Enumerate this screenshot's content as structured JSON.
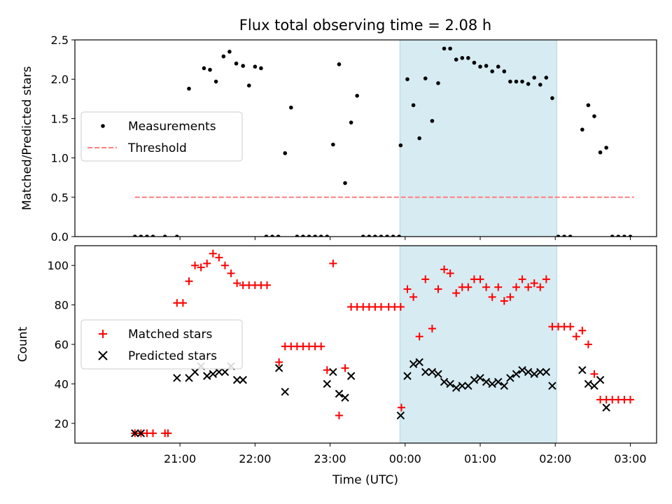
{
  "figure": {
    "title": "Flux total observing time = 2.08 h",
    "xlabel": "Time (UTC)",
    "x_ticks": [
      "21:00",
      "22:00",
      "23:00",
      "00:00",
      "01:00",
      "02:00",
      "03:00"
    ]
  },
  "chart_data": [
    {
      "type": "scatter",
      "title": "Flux total observing time = 2.08 h",
      "xlabel": "",
      "ylabel": "Matched/Predicted stars",
      "x_unit": "hours since 00:00 UTC",
      "xlim": [
        -4.4,
        3.35
      ],
      "ylim": [
        0,
        2.5
      ],
      "y_ticks": [
        "0.0",
        "0.5",
        "1.0",
        "1.5",
        "2.0",
        "2.5"
      ],
      "highlight_span": {
        "from": -0.07,
        "to": 2.02,
        "color": "#add8e6"
      },
      "legend": {
        "position": "center-left",
        "entries": [
          "Measurements",
          "Threshold"
        ]
      },
      "threshold": {
        "name": "Threshold",
        "value": 0.5,
        "x_range": [
          -3.6,
          3.05
        ],
        "color": "#ff7f7f"
      },
      "series": [
        {
          "name": "Measurements",
          "marker": "dot",
          "color": "#000000",
          "points": [
            [
              -3.6,
              0
            ],
            [
              -3.52,
              0
            ],
            [
              -3.44,
              0
            ],
            [
              -3.36,
              0
            ],
            [
              -3.2,
              0
            ],
            [
              -3.04,
              0
            ],
            [
              -2.88,
              1.88
            ],
            [
              -2.68,
              2.14
            ],
            [
              -2.6,
              2.12
            ],
            [
              -2.52,
              1.97
            ],
            [
              -2.42,
              2.29
            ],
            [
              -2.34,
              2.35
            ],
            [
              -2.25,
              2.2
            ],
            [
              -2.16,
              2.17
            ],
            [
              -2.08,
              1.92
            ],
            [
              -2.0,
              2.16
            ],
            [
              -1.92,
              2.14
            ],
            [
              -1.85,
              0
            ],
            [
              -1.77,
              0
            ],
            [
              -1.69,
              0
            ],
            [
              -1.6,
              1.06
            ],
            [
              -1.52,
              1.64
            ],
            [
              -1.44,
              0
            ],
            [
              -1.36,
              0
            ],
            [
              -1.28,
              0
            ],
            [
              -1.2,
              0
            ],
            [
              -1.12,
              0
            ],
            [
              -1.04,
              0
            ],
            [
              -0.96,
              1.17
            ],
            [
              -0.88,
              2.19
            ],
            [
              -0.8,
              0.68
            ],
            [
              -0.72,
              1.45
            ],
            [
              -0.64,
              1.79
            ],
            [
              -0.56,
              0
            ],
            [
              -0.48,
              0
            ],
            [
              -0.4,
              0
            ],
            [
              -0.32,
              0
            ],
            [
              -0.24,
              0
            ],
            [
              -0.16,
              0
            ],
            [
              -0.08,
              0
            ],
            [
              -0.06,
              1.16
            ],
            [
              0.03,
              2.0
            ],
            [
              0.11,
              1.67
            ],
            [
              0.19,
              1.25
            ],
            [
              0.27,
              2.01
            ],
            [
              0.36,
              1.47
            ],
            [
              0.44,
              1.95
            ],
            [
              0.52,
              2.39
            ],
            [
              0.6,
              2.39
            ],
            [
              0.68,
              2.25
            ],
            [
              0.76,
              2.27
            ],
            [
              0.84,
              2.27
            ],
            [
              0.92,
              2.21
            ],
            [
              1.0,
              2.16
            ],
            [
              1.08,
              2.17
            ],
            [
              1.16,
              2.1
            ],
            [
              1.24,
              2.16
            ],
            [
              1.32,
              2.1
            ],
            [
              1.4,
              1.97
            ],
            [
              1.48,
              1.97
            ],
            [
              1.56,
              1.97
            ],
            [
              1.64,
              1.94
            ],
            [
              1.72,
              2.02
            ],
            [
              1.8,
              1.93
            ],
            [
              1.88,
              2.02
            ],
            [
              1.96,
              1.76
            ],
            [
              2.04,
              0
            ],
            [
              2.12,
              0
            ],
            [
              2.2,
              0
            ],
            [
              2.36,
              1.36
            ],
            [
              2.44,
              1.67
            ],
            [
              2.52,
              1.53
            ],
            [
              2.6,
              1.07
            ],
            [
              2.68,
              1.13
            ],
            [
              2.76,
              0
            ],
            [
              2.84,
              0
            ],
            [
              2.92,
              0
            ],
            [
              3.0,
              0
            ]
          ]
        }
      ]
    },
    {
      "type": "scatter",
      "title": "",
      "xlabel": "Time (UTC)",
      "ylabel": "Count",
      "x_unit": "hours since 00:00 UTC",
      "xlim": [
        -4.4,
        3.35
      ],
      "ylim": [
        10,
        110
      ],
      "y_ticks": [
        "20",
        "40",
        "60",
        "80",
        "100"
      ],
      "highlight_span": {
        "from": -0.07,
        "to": 2.02,
        "color": "#add8e6"
      },
      "legend": {
        "position": "center-left",
        "entries": [
          "Matched stars",
          "Predicted stars"
        ]
      },
      "series": [
        {
          "name": "Matched stars",
          "marker": "plus",
          "color": "#ff0000",
          "points": [
            [
              -3.6,
              15
            ],
            [
              -3.52,
              15
            ],
            [
              -3.44,
              15
            ],
            [
              -3.36,
              15
            ],
            [
              -3.2,
              15
            ],
            [
              -3.16,
              15
            ],
            [
              -3.04,
              81
            ],
            [
              -2.96,
              81
            ],
            [
              -2.88,
              92
            ],
            [
              -2.8,
              100
            ],
            [
              -2.72,
              99
            ],
            [
              -2.64,
              101
            ],
            [
              -2.56,
              106
            ],
            [
              -2.48,
              104
            ],
            [
              -2.4,
              100
            ],
            [
              -2.32,
              96
            ],
            [
              -2.24,
              91
            ],
            [
              -2.16,
              90
            ],
            [
              -2.08,
              90
            ],
            [
              -2.0,
              90
            ],
            [
              -1.92,
              90
            ],
            [
              -1.84,
              90
            ],
            [
              -1.68,
              51
            ],
            [
              -1.6,
              59
            ],
            [
              -1.52,
              59
            ],
            [
              -1.44,
              59
            ],
            [
              -1.36,
              59
            ],
            [
              -1.28,
              59
            ],
            [
              -1.2,
              59
            ],
            [
              -1.12,
              59
            ],
            [
              -1.04,
              47
            ],
            [
              -0.96,
              101
            ],
            [
              -0.88,
              24
            ],
            [
              -0.8,
              48
            ],
            [
              -0.72,
              79
            ],
            [
              -0.64,
              79
            ],
            [
              -0.56,
              79
            ],
            [
              -0.48,
              79
            ],
            [
              -0.4,
              79
            ],
            [
              -0.32,
              79
            ],
            [
              -0.22,
              79
            ],
            [
              -0.14,
              79
            ],
            [
              -0.06,
              79
            ],
            [
              -0.05,
              28
            ],
            [
              0.03,
              88
            ],
            [
              0.11,
              84
            ],
            [
              0.19,
              64
            ],
            [
              0.27,
              93
            ],
            [
              0.36,
              68
            ],
            [
              0.44,
              88
            ],
            [
              0.52,
              98
            ],
            [
              0.6,
              96
            ],
            [
              0.68,
              86
            ],
            [
              0.76,
              89
            ],
            [
              0.84,
              89
            ],
            [
              0.92,
              93
            ],
            [
              1.0,
              93
            ],
            [
              1.08,
              89
            ],
            [
              1.16,
              84
            ],
            [
              1.24,
              89
            ],
            [
              1.32,
              82
            ],
            [
              1.4,
              84
            ],
            [
              1.48,
              89
            ],
            [
              1.56,
              93
            ],
            [
              1.64,
              89
            ],
            [
              1.72,
              91
            ],
            [
              1.8,
              89
            ],
            [
              1.88,
              93
            ],
            [
              1.96,
              69
            ],
            [
              2.04,
              69
            ],
            [
              2.12,
              69
            ],
            [
              2.2,
              69
            ],
            [
              2.28,
              64
            ],
            [
              2.36,
              67
            ],
            [
              2.44,
              60
            ],
            [
              2.52,
              45
            ],
            [
              2.6,
              32
            ],
            [
              2.68,
              32
            ],
            [
              2.76,
              32
            ],
            [
              2.84,
              32
            ],
            [
              2.92,
              32
            ],
            [
              3.0,
              32
            ]
          ]
        },
        {
          "name": "Predicted stars",
          "marker": "x",
          "color": "#000000",
          "points": [
            [
              -3.6,
              15
            ],
            [
              -3.52,
              15
            ],
            [
              -3.04,
              43
            ],
            [
              -2.88,
              43
            ],
            [
              -2.8,
              46
            ],
            [
              -2.72,
              49
            ],
            [
              -2.64,
              44
            ],
            [
              -2.56,
              45
            ],
            [
              -2.48,
              46
            ],
            [
              -2.4,
              46
            ],
            [
              -2.32,
              49
            ],
            [
              -2.24,
              42
            ],
            [
              -2.16,
              42
            ],
            [
              -1.68,
              48
            ],
            [
              -1.6,
              36
            ],
            [
              -1.04,
              40
            ],
            [
              -0.96,
              46
            ],
            [
              -0.88,
              35
            ],
            [
              -0.8,
              33
            ],
            [
              -0.72,
              44
            ],
            [
              -0.06,
              24
            ],
            [
              0.03,
              44
            ],
            [
              0.11,
              50
            ],
            [
              0.19,
              51
            ],
            [
              0.27,
              46
            ],
            [
              0.36,
              46
            ],
            [
              0.44,
              45
            ],
            [
              0.52,
              41
            ],
            [
              0.6,
              40
            ],
            [
              0.68,
              38
            ],
            [
              0.76,
              39
            ],
            [
              0.84,
              39
            ],
            [
              0.92,
              42
            ],
            [
              1.0,
              43
            ],
            [
              1.08,
              41
            ],
            [
              1.16,
              40
            ],
            [
              1.24,
              41
            ],
            [
              1.32,
              39
            ],
            [
              1.4,
              43
            ],
            [
              1.48,
              45
            ],
            [
              1.56,
              47
            ],
            [
              1.64,
              46
            ],
            [
              1.72,
              45
            ],
            [
              1.8,
              46
            ],
            [
              1.88,
              46
            ],
            [
              1.96,
              39
            ],
            [
              2.36,
              47
            ],
            [
              2.44,
              40
            ],
            [
              2.52,
              39
            ],
            [
              2.6,
              42
            ],
            [
              2.68,
              28
            ]
          ]
        }
      ]
    }
  ]
}
